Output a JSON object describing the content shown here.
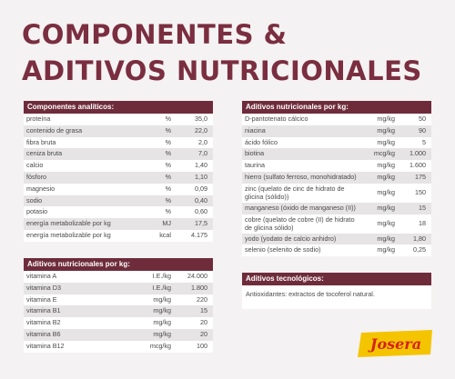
{
  "title": {
    "line1": "COMPONENTES &",
    "line2": "ADITIVOS NUTRICIONALES"
  },
  "analytic": {
    "header": "Componentes analíticos:",
    "rows": [
      {
        "name": "proteína",
        "unit": "%",
        "value": "35,0"
      },
      {
        "name": "contenido de grasa",
        "unit": "%",
        "value": "22,0"
      },
      {
        "name": "fibra bruta",
        "unit": "%",
        "value": "2,0"
      },
      {
        "name": "ceniza bruta",
        "unit": "%",
        "value": "7,0"
      },
      {
        "name": "calcio",
        "unit": "%",
        "value": "1,40"
      },
      {
        "name": "fósforo",
        "unit": "%",
        "value": "1,10"
      },
      {
        "name": "magnesio",
        "unit": "%",
        "value": "0,09"
      },
      {
        "name": "sodio",
        "unit": "%",
        "value": "0,40"
      },
      {
        "name": "potasio",
        "unit": "%",
        "value": "0,60"
      },
      {
        "name": "energía metabolizable por kg",
        "unit": "MJ",
        "value": "17,5"
      },
      {
        "name": "energía metabolizable por kg",
        "unit": "kcal",
        "value": "4.175"
      }
    ]
  },
  "left_nutritional": {
    "header": "Aditivos nutricionales por kg:",
    "rows": [
      {
        "name": "vitamina A",
        "unit": "I.E./kg",
        "value": "24.000"
      },
      {
        "name": "vitamina D3",
        "unit": "I.E./kg",
        "value": "1.800"
      },
      {
        "name": "vitamina E",
        "unit": "mg/kg",
        "value": "220"
      },
      {
        "name": "vitamina B1",
        "unit": "mg/kg",
        "value": "15"
      },
      {
        "name": "vitamina B2",
        "unit": "mg/kg",
        "value": "20"
      },
      {
        "name": "vitamina B6",
        "unit": "mg/kg",
        "value": "20"
      },
      {
        "name": "vitamina B12",
        "unit": "mcg/kg",
        "value": "100"
      }
    ]
  },
  "right_nutritional": {
    "header": "Aditivos nutricionales por kg:",
    "rows": [
      {
        "name": "D-pantotenato cálcico",
        "unit": "mg/kg",
        "value": "50"
      },
      {
        "name": "niacina",
        "unit": "mg/kg",
        "value": "90"
      },
      {
        "name": "ácido fólico",
        "unit": "mg/kg",
        "value": "5"
      },
      {
        "name": "biotina",
        "unit": "mcg/kg",
        "value": "1.000"
      },
      {
        "name": "taurina",
        "unit": "mg/kg",
        "value": "1.600"
      },
      {
        "name": "hierro (sulfato ferroso, monohidratado)",
        "unit": "mg/kg",
        "value": "175"
      },
      {
        "name": "zinc (quelato de cinc de hidrato de glicina (sólido))",
        "unit": "mg/kg",
        "value": "150"
      },
      {
        "name": "manganeso (óxido de manganeso (II))",
        "unit": "mg/kg",
        "value": "15"
      },
      {
        "name": "cobre (quelato de cobre (II) de hidrato de glicina sólido)",
        "unit": "mg/kg",
        "value": "18"
      },
      {
        "name": "yodo (yodato de calcio anhidro)",
        "unit": "mg/kg",
        "value": "1,80"
      },
      {
        "name": "selenio (selenito de sodio)",
        "unit": "mg/kg",
        "value": "0,25"
      }
    ]
  },
  "technological": {
    "header": "Aditivos tecnológicos:",
    "text": "Antioxidantes: extractos de tocoferol natural."
  },
  "logo": {
    "text": "Josera",
    "bg_color": "#f5c400",
    "text_color": "#d6231b"
  }
}
